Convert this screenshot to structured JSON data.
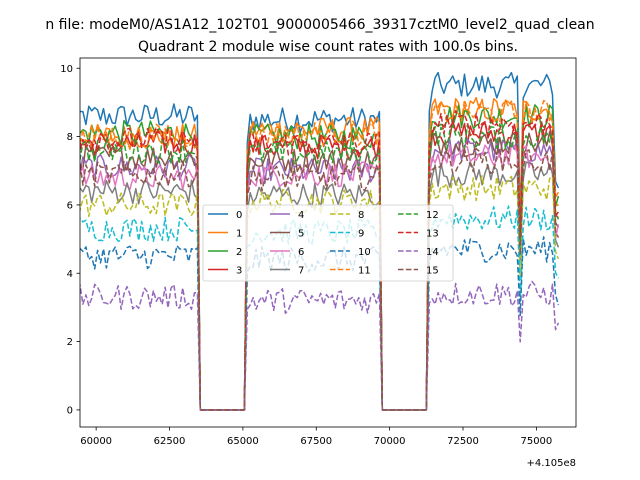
{
  "figure": {
    "suptitle": "n file: modeM0/AS1A12_102T01_9000005466_39317cztM0_level2_quad_clean",
    "title": "Quadrant 2 module wise count rates with 100.0s bins."
  },
  "chart_data": {
    "type": "line",
    "title": "Quadrant 2 module wise count rates with 100.0s bins.",
    "xlabel": "",
    "ylabel": "",
    "offset_text": "+4.105e8",
    "x_offset": 410500000,
    "xlim": [
      59450,
      76350
    ],
    "ylim": [
      -0.5,
      10.3
    ],
    "x_ticks": [
      60000,
      62500,
      65000,
      67500,
      70000,
      72500,
      75000
    ],
    "x_tick_labels": [
      "60000",
      "62500",
      "65000",
      "67500",
      "70000",
      "72500",
      "75000"
    ],
    "y_ticks": [
      0,
      2,
      4,
      6,
      8,
      10
    ],
    "y_tick_labels": [
      "0",
      "2",
      "4",
      "6",
      "8",
      "10"
    ],
    "grid": false,
    "legend": {
      "placement": "center",
      "columns": 4
    },
    "segments": [
      {
        "x_start": 59050,
        "x_end": 63450,
        "active": true
      },
      {
        "x_start": 63550,
        "x_end": 65050,
        "active": false
      },
      {
        "x_start": 65150,
        "x_end": 69650,
        "active": true
      },
      {
        "x_start": 69750,
        "x_end": 71250,
        "active": false
      },
      {
        "x_start": 71350,
        "x_end": 75750,
        "active": true
      }
    ],
    "step": 100,
    "series": [
      {
        "name": "0",
        "color": "#1f77b4",
        "dash": "solid",
        "levels": [
          8.6,
          8.5,
          9.5
        ]
      },
      {
        "name": "1",
        "color": "#ff7f0e",
        "dash": "solid",
        "levels": [
          8.0,
          8.2,
          8.8
        ]
      },
      {
        "name": "2",
        "color": "#2ca02c",
        "dash": "solid",
        "levels": [
          8.1,
          8.0,
          8.6
        ]
      },
      {
        "name": "3",
        "color": "#d62728",
        "dash": "solid",
        "levels": [
          7.8,
          7.7,
          8.1
        ]
      },
      {
        "name": "4",
        "color": "#9467bd",
        "dash": "solid",
        "levels": [
          7.1,
          7.0,
          7.6
        ]
      },
      {
        "name": "5",
        "color": "#8c564b",
        "dash": "solid",
        "levels": [
          7.4,
          7.3,
          7.8
        ]
      },
      {
        "name": "6",
        "color": "#e377c2",
        "dash": "solid",
        "levels": [
          6.8,
          6.9,
          7.4
        ]
      },
      {
        "name": "7",
        "color": "#7f7f7f",
        "dash": "solid",
        "levels": [
          6.4,
          6.3,
          6.9
        ]
      },
      {
        "name": "8",
        "color": "#bcbd22",
        "dash": "dashed",
        "levels": [
          6.0,
          6.1,
          6.5
        ]
      },
      {
        "name": "9",
        "color": "#17becf",
        "dash": "dashed",
        "levels": [
          5.3,
          5.2,
          5.6
        ]
      },
      {
        "name": "10",
        "color": "#1f77b4",
        "dash": "dashed",
        "levels": [
          4.5,
          4.4,
          4.7
        ]
      },
      {
        "name": "11",
        "color": "#ff7f0e",
        "dash": "dashed",
        "levels": [
          8.0,
          8.1,
          8.7
        ]
      },
      {
        "name": "12",
        "color": "#2ca02c",
        "dash": "dashed",
        "levels": [
          7.6,
          7.5,
          8.0
        ]
      },
      {
        "name": "13",
        "color": "#d62728",
        "dash": "dashed",
        "levels": [
          7.9,
          7.8,
          8.4
        ]
      },
      {
        "name": "14",
        "color": "#9467bd",
        "dash": "dashed",
        "levels": [
          3.3,
          3.2,
          3.4
        ]
      },
      {
        "name": "15",
        "color": "#8c564b",
        "dash": "dashed",
        "levels": [
          6.9,
          6.8,
          7.3
        ]
      }
    ]
  }
}
